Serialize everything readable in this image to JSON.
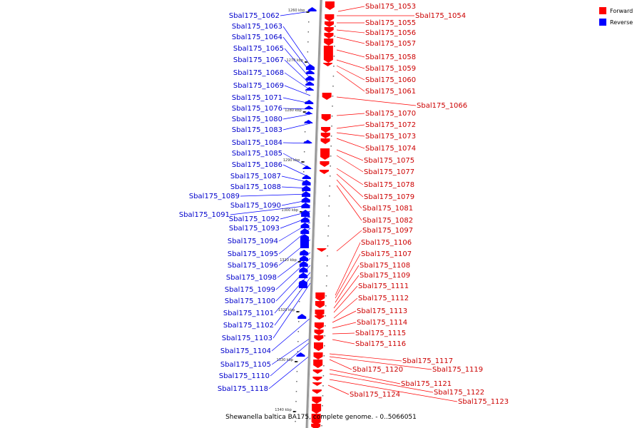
{
  "legend": {
    "forward_label": "Forward",
    "reverse_label": "Reverse",
    "forward_color": "#ff0000",
    "reverse_color": "#0000ff"
  },
  "colors": {
    "forward_text": "#cc0000",
    "reverse_text": "#0000cc",
    "axis": "#999999"
  },
  "caption": "Shewanella baltica BA175, complete genome. - 0..5066051",
  "ticks": [
    "1260 kbp",
    "1270 kbp",
    "1280 kbp",
    "1290 kbp",
    "1300 kbp",
    "1310 kbp",
    "1320 kbp",
    "1330 kbp",
    "1340 kbp"
  ],
  "reverse_genes": [
    "Sbal175_1062",
    "Sbal175_1063",
    "Sbal175_1064",
    "Sbal175_1065",
    "Sbal175_1067",
    "Sbal175_1068",
    "Sbal175_1069",
    "Sbal175_1071",
    "Sbal175_1076",
    "Sbal175_1080",
    "Sbal175_1083",
    "Sbal175_1084",
    "Sbal175_1085",
    "Sbal175_1086",
    "Sbal175_1087",
    "Sbal175_1088",
    "Sbal175_1089",
    "Sbal175_1090",
    "Sbal175_1091",
    "Sbal175_1092",
    "Sbal175_1093",
    "Sbal175_1094",
    "Sbal175_1095",
    "Sbal175_1096",
    "Sbal175_1098",
    "Sbal175_1099",
    "Sbal175_1100",
    "Sbal175_1101",
    "Sbal175_1102",
    "Sbal175_1103",
    "Sbal175_1104",
    "Sbal175_1105",
    "Sbal175_1110",
    "Sbal175_1118"
  ],
  "forward_genes": [
    "Sbal175_1053",
    "Sbal175_1054",
    "Sbal175_1055",
    "Sbal175_1056",
    "Sbal175_1057",
    "Sbal175_1058",
    "Sbal175_1059",
    "Sbal175_1060",
    "Sbal175_1061",
    "Sbal175_1066",
    "Sbal175_1070",
    "Sbal175_1072",
    "Sbal175_1073",
    "Sbal175_1074",
    "Sbal175_1075",
    "Sbal175_1077",
    "Sbal175_1078",
    "Sbal175_1079",
    "Sbal175_1081",
    "Sbal175_1082",
    "Sbal175_1097",
    "Sbal175_1106",
    "Sbal175_1107",
    "Sbal175_1108",
    "Sbal175_1109",
    "Sbal175_1111",
    "Sbal175_1112",
    "Sbal175_1113",
    "Sbal175_1114",
    "Sbal175_1115",
    "Sbal175_1116",
    "Sbal175_1117",
    "Sbal175_1119",
    "Sbal175_1120",
    "Sbal175_1121",
    "Sbal175_1122",
    "Sbal175_1123",
    "Sbal175_1124"
  ]
}
